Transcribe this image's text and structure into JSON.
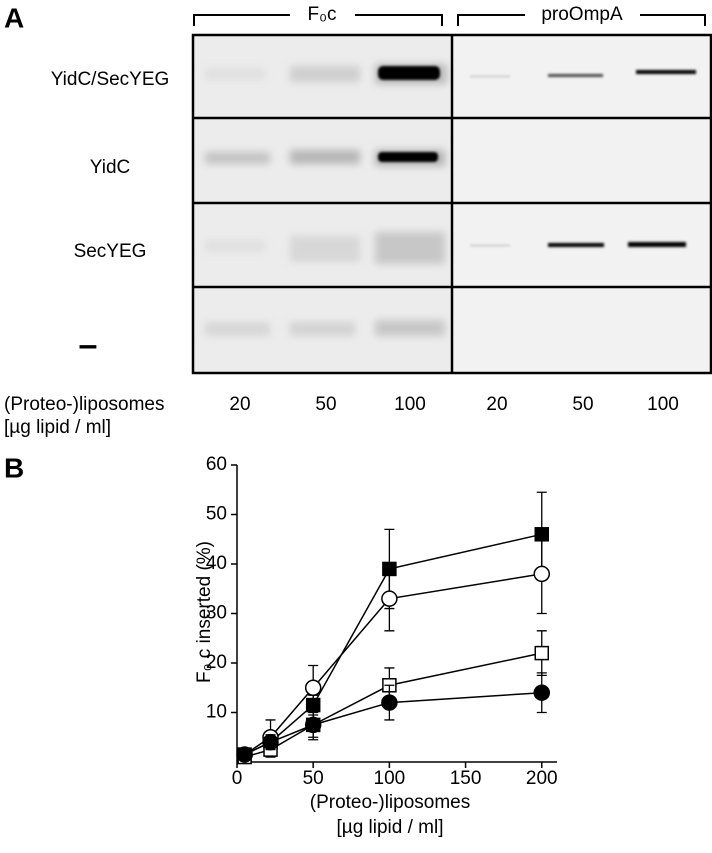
{
  "panel_a": {
    "label": "A",
    "groups": [
      "F₀c",
      "proOmpA"
    ],
    "rows": [
      "YidC/SecYEG",
      "YidC",
      "SecYEG",
      "–"
    ],
    "x_label": [
      "(Proteo-)liposomes",
      "[µg lipid / ml]"
    ],
    "lanes": [
      "20",
      "50",
      "100",
      "20",
      "50",
      "100"
    ]
  },
  "chart_data": {
    "type": "line",
    "label": "B",
    "ylabel": "F₀ c inserted (%)",
    "xlabel": [
      "(Proteo-)liposomes",
      "[µg lipid / ml]"
    ],
    "x": [
      5,
      22,
      50,
      100,
      200
    ],
    "series": [
      {
        "marker": "square",
        "filled": true,
        "color": "#000000",
        "values": [
          1.5,
          4,
          11.5,
          39,
          46
        ],
        "errors": [
          0.5,
          2,
          2,
          8,
          8.5
        ]
      },
      {
        "marker": "circle",
        "filled": false,
        "color": "#000000",
        "values": [
          1.5,
          5,
          15,
          33,
          38
        ],
        "errors": [
          0.5,
          3.5,
          4.5,
          6.5,
          8
        ]
      },
      {
        "marker": "square",
        "filled": false,
        "color": "#000000",
        "values": [
          1,
          2.5,
          7.5,
          15.5,
          22
        ],
        "errors": [
          0.5,
          1.5,
          2.5,
          3.5,
          4.5
        ]
      },
      {
        "marker": "circle",
        "filled": true,
        "color": "#000000",
        "values": [
          1.5,
          4,
          7.5,
          12,
          14
        ],
        "errors": [
          0.5,
          1.5,
          3,
          3.5,
          4
        ]
      }
    ],
    "xlim": [
      0,
      210
    ],
    "xticks": [
      0,
      50,
      100,
      150,
      200
    ],
    "ylim": [
      0,
      60
    ],
    "yticks": [
      10,
      20,
      30,
      40,
      50,
      60
    ]
  }
}
